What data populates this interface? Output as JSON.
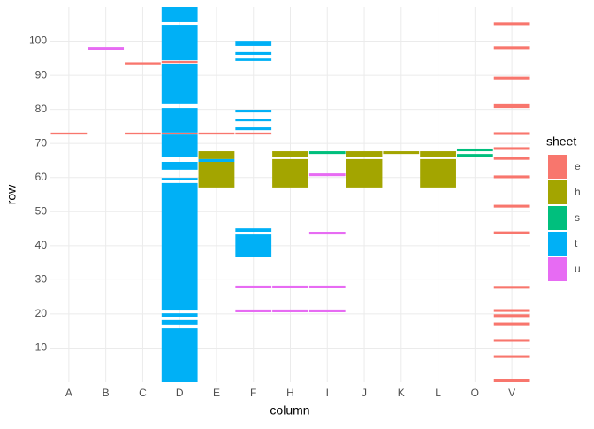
{
  "chart_data": {
    "type": "tile",
    "x_label": "column",
    "y_label": "row",
    "categories": [
      "A",
      "B",
      "C",
      "D",
      "E",
      "F",
      "H",
      "I",
      "J",
      "K",
      "L",
      "O",
      "V"
    ],
    "ylim": [
      0,
      110
    ],
    "yticks": [
      10,
      20,
      30,
      40,
      50,
      60,
      70,
      80,
      90,
      100
    ],
    "grid": true,
    "legend_title": "sheet",
    "legend_position": "right",
    "series": [
      {
        "name": "e",
        "color": "#F8766D",
        "columns": [
          "C",
          "D",
          "A",
          "C",
          "D",
          "E",
          "F",
          "V",
          "V",
          "V",
          "V",
          "V",
          "V",
          "V",
          "V",
          "V",
          "V",
          "V",
          "V",
          "V",
          "V",
          "V",
          "V",
          "V"
        ],
        "from": [
          93.2,
          93.6,
          72.6,
          72.6,
          72.6,
          72.6,
          72.6,
          104.7,
          97.7,
          88.8,
          80.4,
          72.5,
          68.1,
          65.2,
          59.8,
          51.2,
          43.4,
          27.4,
          20.6,
          19.1,
          16.7,
          11.8,
          7.1,
          0
        ],
        "to": [
          93.8,
          94.2,
          73.2,
          73.2,
          73.2,
          73.2,
          73.2,
          105.5,
          98.5,
          89.6,
          81.5,
          73.3,
          68.9,
          66.0,
          60.6,
          52.0,
          44.2,
          28.2,
          21.4,
          19.9,
          17.5,
          12.6,
          7.9,
          0.8
        ]
      },
      {
        "name": "h",
        "color": "#A3A500",
        "columns": [
          "E",
          "E",
          "H",
          "H",
          "J",
          "J",
          "L",
          "L",
          "K"
        ],
        "from": [
          57.1,
          65.4,
          57.1,
          66.1,
          57.1,
          66.1,
          57.1,
          66.1,
          66.9
        ],
        "to": [
          64.6,
          67.7,
          65.4,
          67.7,
          65.4,
          67.7,
          65.4,
          67.7,
          67.7
        ]
      },
      {
        "name": "s",
        "color": "#00BF7D",
        "columns": [
          "I",
          "O",
          "O"
        ],
        "from": [
          66.9,
          67.7,
          66.1
        ],
        "to": [
          67.7,
          68.5,
          66.9
        ]
      },
      {
        "name": "t",
        "color": "#00B0F6",
        "columns": [
          "D",
          "D",
          "D",
          "D",
          "D",
          "D",
          "D",
          "D",
          "D",
          "D",
          "D",
          "E",
          "F",
          "F",
          "F",
          "F",
          "F",
          "F",
          "F",
          "F"
        ],
        "from": [
          105.6,
          94.4,
          81.5,
          73.2,
          66.0,
          62.3,
          59.2,
          21.0,
          19.2,
          16.9,
          0,
          64.6,
          98.6,
          96.0,
          94.2,
          79.1,
          76.5,
          73.9,
          44.1,
          36.8
        ],
        "to": [
          110,
          104.8,
          93.4,
          80.4,
          72.6,
          64.6,
          59.9,
          58.4,
          20.2,
          18.2,
          15.8,
          65.4,
          100.1,
          96.8,
          94.9,
          79.9,
          77.3,
          74.7,
          45.1,
          43.3
        ]
      },
      {
        "name": "u",
        "color": "#E76BF3",
        "columns": [
          "B",
          "I",
          "I",
          "F",
          "H",
          "I",
          "F",
          "H",
          "I"
        ],
        "from": [
          97.5,
          60.4,
          43.3,
          27.5,
          27.5,
          27.5,
          20.5,
          20.5,
          20.5
        ],
        "to": [
          98.3,
          61.2,
          44.1,
          28.3,
          28.3,
          28.3,
          21.3,
          21.3,
          21.3
        ]
      }
    ]
  }
}
